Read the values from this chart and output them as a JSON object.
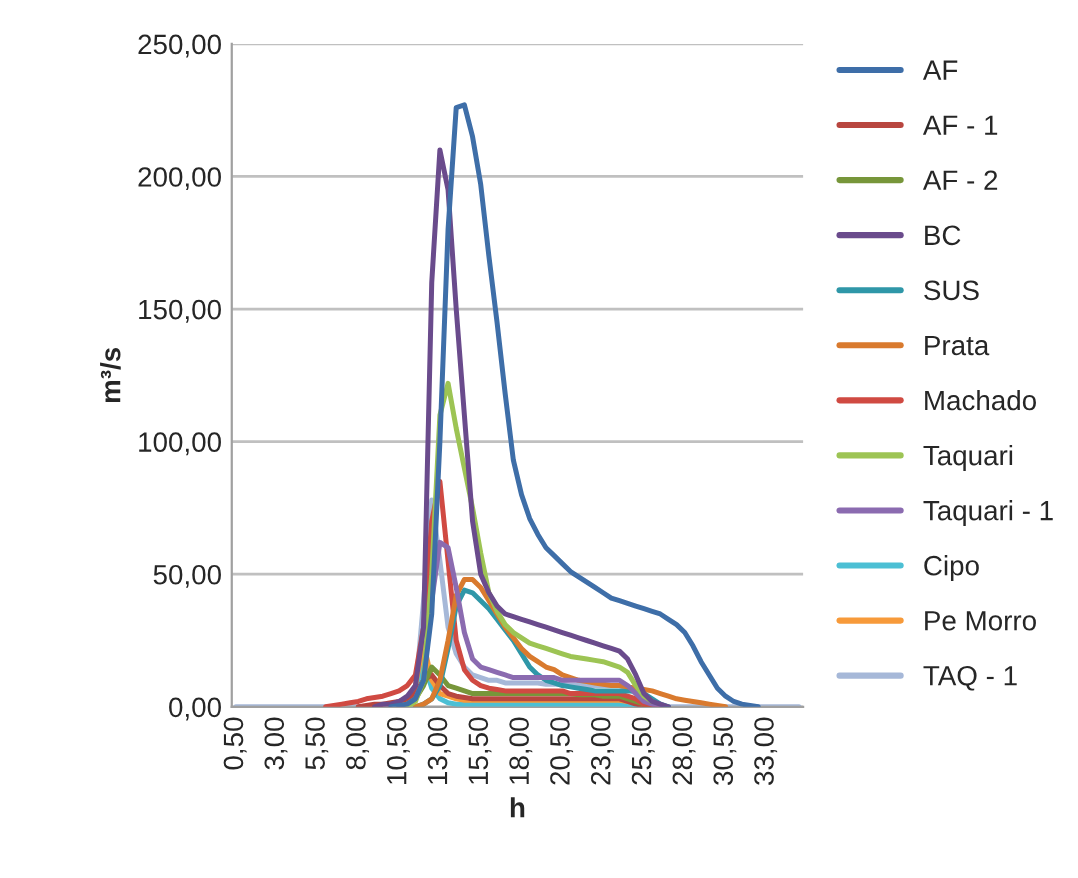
{
  "chart_data": {
    "type": "line",
    "xlabel": "h",
    "ylabel": "m³/s",
    "categories": [
      "0,50",
      null,
      null,
      null,
      null,
      "3,00",
      null,
      null,
      null,
      null,
      "5,50",
      null,
      null,
      null,
      null,
      "8,00",
      null,
      null,
      null,
      null,
      "10,50",
      null,
      null,
      null,
      null,
      "13,00",
      null,
      null,
      null,
      null,
      "15,50",
      null,
      null,
      null,
      null,
      "18,00",
      null,
      null,
      null,
      null,
      "20,50",
      null,
      null,
      null,
      null,
      "23,00",
      null,
      null,
      null,
      null,
      "25,50",
      null,
      null,
      null,
      null,
      "28,00",
      null,
      null,
      null,
      null,
      "30,50",
      null,
      null,
      null,
      null,
      "33,00",
      null,
      null,
      null,
      null
    ],
    "ylim": [
      0,
      250
    ],
    "yticks": [
      {
        "value": 0,
        "label": "0,00"
      },
      {
        "value": 50,
        "label": "50,00"
      },
      {
        "value": 100,
        "label": "100,00"
      },
      {
        "value": 150,
        "label": "150,00"
      },
      {
        "value": 200,
        "label": "200,00"
      },
      {
        "value": 250,
        "label": "250,00"
      }
    ],
    "grid": "y",
    "legend": "right",
    "marker": "none",
    "line_style": "solid",
    "series": [
      {
        "name": "AF",
        "color": "#3e6ea8",
        "values": [
          null,
          null,
          null,
          null,
          null,
          null,
          null,
          null,
          null,
          null,
          null,
          null,
          null,
          null,
          null,
          null,
          null,
          null,
          null,
          0,
          0.5,
          1,
          3,
          10,
          35,
          100,
          180,
          226,
          227,
          215,
          197,
          170,
          145,
          118,
          93,
          80,
          71,
          65,
          60,
          57,
          54,
          51,
          49,
          47,
          45,
          43,
          41,
          40,
          39,
          38,
          37,
          36,
          35,
          33,
          31,
          28,
          23,
          17,
          12,
          7,
          4,
          2,
          1,
          0.5,
          0,
          null,
          null,
          null,
          null,
          null
        ]
      },
      {
        "name": "AF - 1",
        "color": "#b8463f",
        "values": [
          null,
          null,
          null,
          null,
          null,
          null,
          null,
          null,
          null,
          null,
          null,
          null,
          null,
          null,
          null,
          0,
          0.5,
          1,
          1,
          1.5,
          2,
          3,
          5,
          10,
          12,
          8,
          5,
          4,
          3.5,
          3,
          3,
          3,
          3,
          3,
          3,
          3,
          3,
          3,
          3,
          3,
          3,
          3,
          3,
          3,
          3,
          3,
          3,
          3,
          2,
          1,
          0.5,
          0,
          null,
          null,
          null,
          null,
          null,
          null,
          null,
          null,
          null,
          null,
          null,
          null,
          null,
          null,
          null,
          null,
          null,
          null
        ]
      },
      {
        "name": "AF - 2",
        "color": "#77963a",
        "values": [
          null,
          null,
          null,
          null,
          null,
          null,
          null,
          null,
          null,
          null,
          null,
          null,
          null,
          null,
          null,
          null,
          null,
          null,
          null,
          null,
          0,
          1,
          3,
          8,
          15,
          12,
          8,
          7,
          6,
          5,
          5,
          5,
          5,
          5,
          5,
          5,
          5,
          5,
          5,
          5,
          5,
          5,
          4.5,
          4.5,
          4.5,
          4,
          4,
          4,
          3,
          2,
          1,
          0,
          null,
          null,
          null,
          null,
          null,
          null,
          null,
          null,
          null,
          null,
          null,
          null,
          null,
          null,
          null,
          null,
          null,
          null
        ]
      },
      {
        "name": "BC",
        "color": "#6a4b8c",
        "values": [
          null,
          null,
          null,
          null,
          null,
          null,
          null,
          null,
          null,
          null,
          null,
          null,
          null,
          null,
          null,
          null,
          null,
          0,
          1,
          1,
          2,
          4,
          8,
          30,
          160,
          210,
          195,
          150,
          110,
          70,
          50,
          43,
          38,
          35,
          34,
          33,
          32,
          31,
          30,
          29,
          28,
          27,
          26,
          25,
          24,
          23,
          22,
          21,
          18,
          12,
          5,
          2,
          1,
          0,
          null,
          null,
          null,
          null,
          null,
          null,
          null,
          null,
          null,
          null,
          null,
          null,
          null,
          null,
          null,
          null
        ]
      },
      {
        "name": "SUS",
        "color": "#2f97a8",
        "values": [
          null,
          null,
          null,
          null,
          null,
          null,
          null,
          null,
          null,
          null,
          null,
          null,
          null,
          null,
          null,
          null,
          null,
          null,
          null,
          null,
          null,
          null,
          0,
          1,
          3,
          8,
          22,
          38,
          44,
          43,
          40,
          37,
          33,
          29,
          25,
          20,
          15,
          12,
          10,
          9,
          8,
          7.5,
          7,
          6.5,
          6,
          6,
          6,
          6,
          6,
          6,
          5,
          3,
          1,
          0,
          null,
          null,
          null,
          null,
          null,
          null,
          null,
          null,
          null,
          null,
          null,
          null,
          null,
          null,
          null,
          null
        ]
      },
      {
        "name": "Prata",
        "color": "#d97a2e",
        "values": [
          null,
          null,
          null,
          null,
          null,
          null,
          null,
          null,
          null,
          null,
          null,
          null,
          null,
          null,
          null,
          null,
          null,
          null,
          null,
          null,
          null,
          null,
          0,
          1,
          3,
          10,
          25,
          42,
          48,
          48,
          45,
          40,
          35,
          30,
          26,
          22,
          19,
          17,
          15,
          14,
          12,
          11,
          10,
          9.5,
          9,
          8.5,
          8,
          8,
          7.5,
          7,
          6.5,
          6,
          5,
          4,
          3,
          2.5,
          2,
          1.5,
          1,
          0.5,
          0,
          null,
          null,
          null,
          null,
          null,
          null,
          null,
          null,
          null
        ]
      },
      {
        "name": "Machado",
        "color": "#d04a42",
        "values": [
          null,
          null,
          null,
          null,
          null,
          null,
          null,
          null,
          null,
          null,
          null,
          0,
          0.5,
          1,
          1.5,
          2,
          3,
          3.5,
          4,
          5,
          6,
          8,
          12,
          30,
          70,
          85,
          55,
          25,
          14,
          10,
          8,
          7,
          6.5,
          6,
          6,
          6,
          6,
          6,
          6,
          6,
          6,
          5,
          5,
          5,
          5,
          5,
          5,
          5,
          4,
          3,
          1,
          0.5,
          0,
          null,
          null,
          null,
          null,
          null,
          null,
          null,
          null,
          null,
          null,
          null,
          null,
          null,
          null,
          null,
          null,
          null
        ]
      },
      {
        "name": "Taquari",
        "color": "#9dc454",
        "values": [
          null,
          null,
          null,
          null,
          null,
          null,
          null,
          null,
          null,
          null,
          null,
          null,
          null,
          null,
          null,
          null,
          null,
          null,
          null,
          null,
          null,
          0,
          2,
          10,
          50,
          110,
          122,
          105,
          90,
          75,
          58,
          43,
          36,
          31,
          28,
          26,
          24,
          23,
          22,
          21,
          20,
          19,
          18.5,
          18,
          17.5,
          17,
          16,
          15,
          13,
          8,
          4,
          2,
          null,
          null,
          null,
          null,
          null,
          null,
          null,
          null,
          null,
          null,
          null,
          null,
          null,
          null,
          null,
          null,
          null,
          null
        ]
      },
      {
        "name": "Taquari - 1",
        "color": "#8b6bb0",
        "values": [
          null,
          null,
          null,
          null,
          null,
          null,
          null,
          null,
          null,
          null,
          null,
          null,
          null,
          null,
          null,
          null,
          null,
          null,
          null,
          null,
          0,
          1,
          3,
          10,
          40,
          62,
          60,
          45,
          28,
          18,
          15,
          14,
          13,
          12,
          11,
          11,
          11,
          11,
          11,
          11,
          10,
          10,
          10,
          10,
          10,
          10,
          10,
          10,
          8,
          5,
          2,
          1,
          0,
          null,
          null,
          null,
          null,
          null,
          null,
          null,
          null,
          null,
          null,
          null,
          null,
          null,
          null,
          null,
          null,
          null
        ]
      },
      {
        "name": "Cipo",
        "color": "#4cbfd4",
        "values": [
          null,
          null,
          null,
          null,
          null,
          null,
          null,
          null,
          null,
          null,
          null,
          null,
          null,
          null,
          null,
          null,
          null,
          null,
          null,
          null,
          0,
          1,
          5,
          17,
          7,
          3,
          1.5,
          1,
          1,
          1,
          1,
          1,
          1,
          1,
          1,
          1,
          1,
          1,
          1,
          1,
          1,
          1,
          1,
          1,
          1,
          1,
          1,
          1,
          0.5,
          0,
          null,
          null,
          null,
          null,
          null,
          null,
          null,
          null,
          null,
          null,
          null,
          null,
          null,
          null,
          null,
          null,
          null,
          null,
          null,
          null
        ]
      },
      {
        "name": "Pe Morro",
        "color": "#f79a3a",
        "values": [
          null,
          null,
          null,
          null,
          null,
          null,
          null,
          null,
          null,
          null,
          null,
          null,
          null,
          null,
          null,
          null,
          null,
          null,
          null,
          null,
          0,
          1,
          8,
          24,
          10,
          5,
          4,
          3,
          2.5,
          2.5,
          2.5,
          2.5,
          2.5,
          2.5,
          2.5,
          2.5,
          2.5,
          2.5,
          2.5,
          2.5,
          2.5,
          2.5,
          2.5,
          2.5,
          2.5,
          2.5,
          2.5,
          2.5,
          2,
          1.5,
          null,
          null,
          null,
          null,
          null,
          null,
          null,
          null,
          null,
          null,
          null,
          null,
          null,
          null,
          null,
          null,
          null,
          null,
          null,
          null
        ]
      },
      {
        "name": "TAQ - 1",
        "color": "#a6b8d8",
        "values": [
          0,
          0,
          0,
          0,
          0,
          0,
          0,
          0,
          0,
          0,
          0,
          0,
          0,
          0,
          0,
          0,
          0,
          0,
          0,
          0,
          0,
          1,
          5,
          40,
          78,
          55,
          30,
          20,
          15,
          12,
          11,
          10,
          10,
          9,
          9,
          9,
          9,
          9,
          8.5,
          8.5,
          8.5,
          8,
          8,
          8,
          8,
          8,
          8,
          8,
          7,
          5,
          2,
          1,
          0,
          0,
          0,
          0,
          0,
          0,
          0,
          0,
          0,
          0,
          0,
          0,
          0,
          0,
          0,
          0,
          0,
          0
        ]
      }
    ]
  }
}
